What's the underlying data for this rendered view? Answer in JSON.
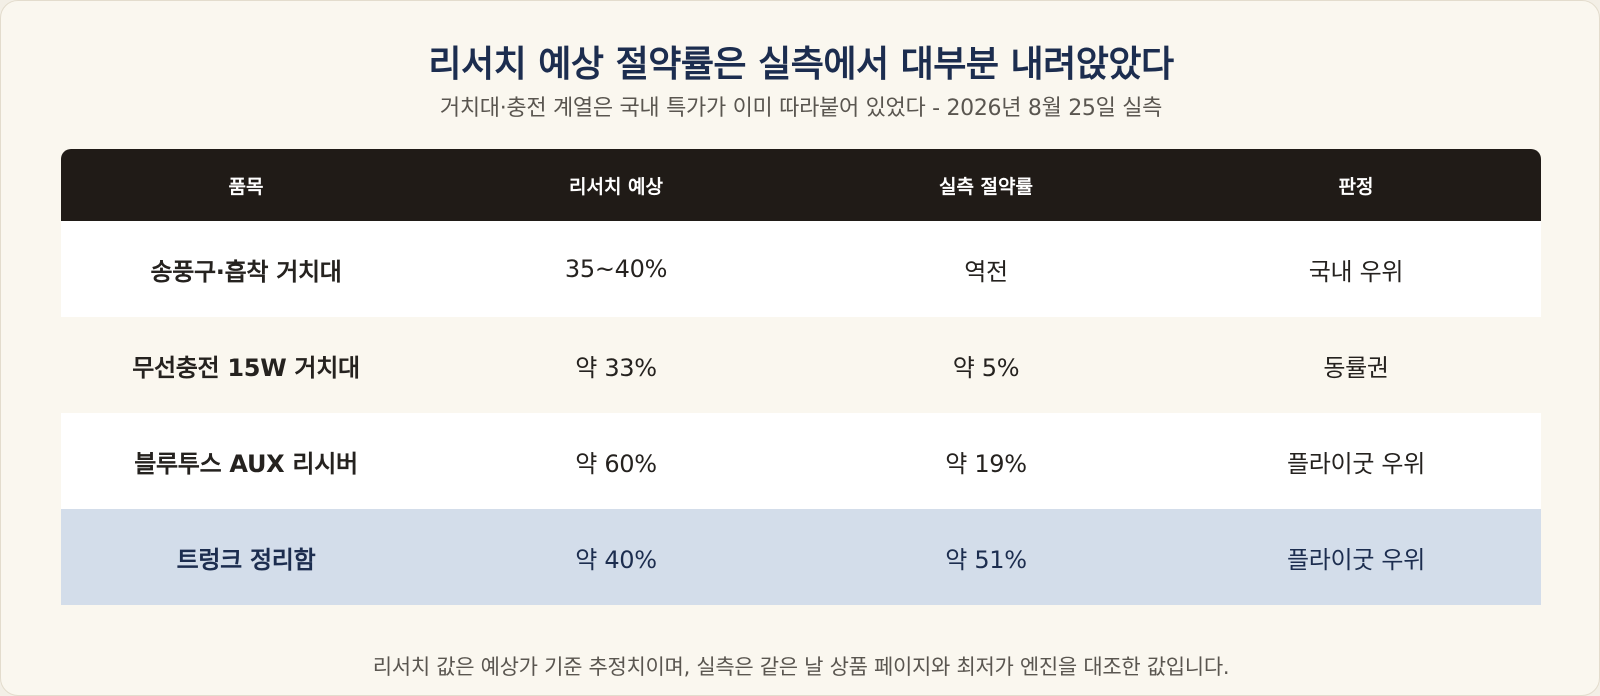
{
  "title": "리서치 예상 절약률은 실측에서 대부분 내려앉았다",
  "subtitle": "거치대·충전 계열은 국내 특가가 이미 따라붙어 있었다 - 2026년 8월 25일 실측",
  "table": {
    "headers": [
      "품목",
      "리서치 예상",
      "실측 절약률",
      "판정"
    ],
    "rows": [
      {
        "item": "송풍구·흡착 거치대",
        "expected": "35~40%",
        "measured": "역전",
        "verdict": "국내 우위"
      },
      {
        "item": "무선충전 15W 거치대",
        "expected": "약 33%",
        "measured": "약 5%",
        "verdict": "동률권"
      },
      {
        "item": "블루투스 AUX 리시버",
        "expected": "약 60%",
        "measured": "약 19%",
        "verdict": "플라이굿 우위"
      },
      {
        "item": "트렁크 정리함",
        "expected": "약 40%",
        "measured": "약 51%",
        "verdict": "플라이굿 우위"
      }
    ]
  },
  "footer": "리서치 값은 예상가 기준 추정치이며, 실측은 같은 날 상품 페이지와 최저가 엔진을 대조한 값입니다.",
  "colors": {
    "title": "#1c2d4f",
    "header_bg": "#201b17",
    "highlight_row": "#d3ddea",
    "page_bg": "#faf7ef"
  }
}
